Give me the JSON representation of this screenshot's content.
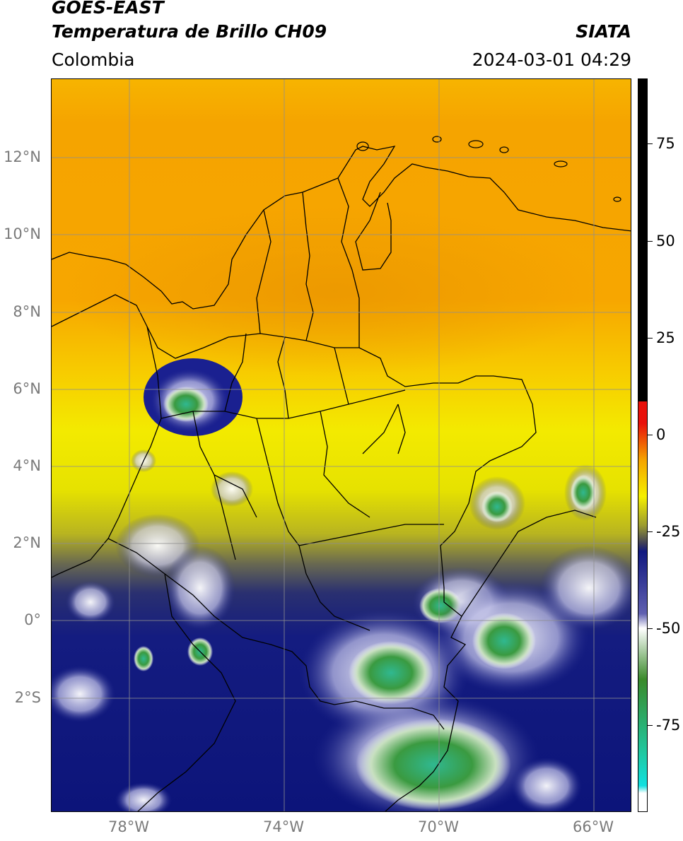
{
  "header": {
    "title_line1": "GOES-EAST",
    "title_line2": "Temperatura de Brillo CH09",
    "organization": "SIATA",
    "region": "Colombia",
    "timestamp": "2024-03-01 04:29"
  },
  "map": {
    "lat_labels": [
      {
        "label": "12°N",
        "lat": 12
      },
      {
        "label": "10°N",
        "lat": 10
      },
      {
        "label": "8°N",
        "lat": 8
      },
      {
        "label": "6°N",
        "lat": 6
      },
      {
        "label": "4°N",
        "lat": 4
      },
      {
        "label": "2°N",
        "lat": 2
      },
      {
        "label": "0°",
        "lat": 0
      },
      {
        "label": "2°S",
        "lat": -2
      }
    ],
    "lon_labels": [
      {
        "label": "78°W",
        "lon": -78
      },
      {
        "label": "74°W",
        "lon": -74
      },
      {
        "label": "70°W",
        "lon": -70
      },
      {
        "label": "66°W",
        "lon": -66
      }
    ],
    "gridline_color": "#9a9a9a"
  },
  "colorbar": {
    "ticks": [
      {
        "label": "75",
        "value": 75
      },
      {
        "label": "50",
        "value": 50
      },
      {
        "label": "25",
        "value": 25
      },
      {
        "label": "0",
        "value": 0
      },
      {
        "label": "-25",
        "value": -25
      },
      {
        "label": "-50",
        "value": -50
      },
      {
        "label": "-75",
        "value": -75
      }
    ],
    "colors": {
      "warm_black": "#000000",
      "red": "#e8100a",
      "orange": "#f5a300",
      "yellow": "#f5f000",
      "olive": "#9a9a30",
      "navy": "#101880",
      "white": "#ffffff",
      "green": "#3a8a2a",
      "teal": "#20c8a0",
      "cyan": "#10e0e0"
    }
  }
}
